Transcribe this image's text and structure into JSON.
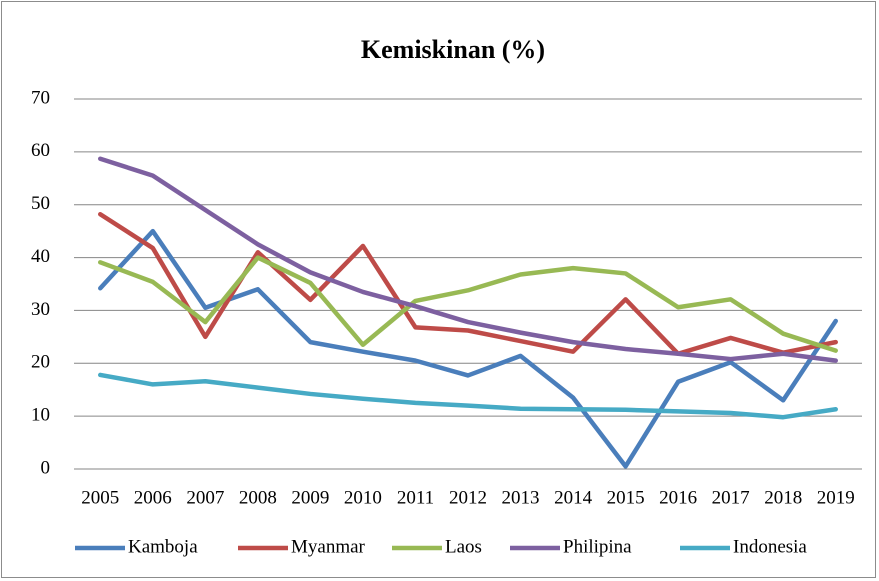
{
  "chart_data": {
    "type": "line",
    "title": "Kemiskinan (%)",
    "categories": [
      "2005",
      "2006",
      "2007",
      "2008",
      "2009",
      "2010",
      "2011",
      "2012",
      "2013",
      "2014",
      "2015",
      "2016",
      "2017",
      "2018",
      "2019"
    ],
    "series": [
      {
        "name": "Kamboja",
        "color": "#4a7ebb",
        "values": [
          34.2,
          45,
          30.5,
          34,
          24,
          22.2,
          20.5,
          17.7,
          21.4,
          13.5,
          0.5,
          16.5,
          20.2,
          13,
          28
        ]
      },
      {
        "name": "Myanmar",
        "color": "#be4b48",
        "values": [
          48.2,
          41.8,
          25,
          41,
          32,
          42.2,
          26.8,
          26.2,
          24.2,
          22.2,
          32.1,
          21.8,
          24.8,
          22,
          24
        ]
      },
      {
        "name": "Laos",
        "color": "#98b954",
        "values": [
          39.1,
          35.4,
          27.8,
          40,
          35.2,
          23.5,
          31.8,
          33.8,
          36.8,
          38,
          37,
          30.6,
          32.1,
          25.6,
          22.4
        ]
      },
      {
        "name": "Philipina",
        "color": "#7d60a0",
        "values": [
          58.7,
          55.5,
          49,
          42.5,
          37.2,
          33.5,
          30.8,
          27.8,
          25.8,
          24,
          22.7,
          21.8,
          20.8,
          21.8,
          20.5
        ]
      },
      {
        "name": "Indonesia",
        "color": "#46aac5",
        "values": [
          17.8,
          16,
          16.6,
          15.4,
          14.2,
          13.3,
          12.5,
          12,
          11.4,
          11.3,
          11.2,
          10.9,
          10.6,
          9.8,
          11.3
        ]
      }
    ],
    "ylim": [
      0,
      70
    ],
    "yticks": [
      0,
      10,
      20,
      30,
      40,
      50,
      60,
      70
    ],
    "grid": true,
    "legend": "bottom"
  }
}
